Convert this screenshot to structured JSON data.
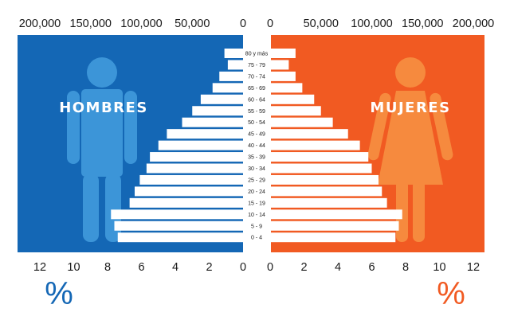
{
  "chart_data": {
    "type": "bar",
    "orientation": "horizontal-population-pyramid",
    "categories": [
      "0 - 4",
      "5 - 9",
      "10 - 14",
      "15 - 19",
      "20 - 24",
      "25 - 29",
      "30 - 34",
      "35 - 39",
      "40 - 44",
      "45 - 49",
      "50 - 54",
      "55 - 59",
      "60 - 64",
      "65 - 69",
      "70 - 74",
      "75 - 79",
      "80 y más"
    ],
    "series": [
      {
        "name": "HOMBRES",
        "color": "#1467b5",
        "values": [
          7.4,
          7.6,
          7.8,
          6.7,
          6.4,
          6.1,
          5.7,
          5.5,
          5.0,
          4.5,
          3.6,
          3.0,
          2.5,
          1.8,
          1.4,
          0.9,
          1.1
        ]
      },
      {
        "name": "MUJERES",
        "color": "#f15a22",
        "values": [
          7.4,
          7.6,
          7.8,
          6.9,
          6.6,
          6.4,
          6.0,
          5.8,
          5.3,
          4.6,
          3.7,
          3.0,
          2.6,
          1.9,
          1.5,
          1.1,
          1.5
        ]
      }
    ],
    "percent_axis": {
      "ticks": [
        0,
        2,
        4,
        6,
        8,
        10,
        12
      ],
      "range": [
        0,
        12
      ],
      "label": "%"
    },
    "count_axis": {
      "ticks": [
        "0",
        "50,000",
        "100,000",
        "150,000",
        "200,000"
      ],
      "range": [
        0,
        200000
      ]
    },
    "grid": false
  }
}
